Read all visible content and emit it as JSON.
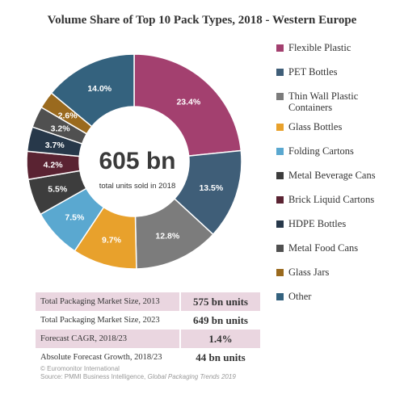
{
  "chart_data": {
    "type": "pie",
    "title": "Volume Share of Top 10 Pack Types, 2018 - Western Europe",
    "categories": [
      "Flexible Plastic",
      "PET Bottles",
      "Thin Wall Plastic Containers",
      "Glass Bottles",
      "Folding Cartons",
      "Metal Beverage Cans",
      "Brick Liquid Cartons",
      "HDPE Bottles",
      "Metal Food Cans",
      "Glass Jars",
      "Other"
    ],
    "values": [
      23.4,
      13.5,
      12.8,
      9.7,
      7.5,
      5.5,
      4.2,
      3.7,
      3.2,
      2.6,
      14.0
    ],
    "value_labels": [
      "23.4%",
      "13.5%",
      "12.8%",
      "9.7%",
      "7.5%",
      "5.5%",
      "4.2%",
      "3.7%",
      "3.2%",
      "2.6%",
      "14.0%"
    ],
    "colors": [
      "#a3406f",
      "#3f5e78",
      "#7c7c7c",
      "#e8a12c",
      "#5aa8d0",
      "#3d3d3d",
      "#5a2332",
      "#27384a",
      "#505050",
      "#9a6a1e",
      "#34627e"
    ],
    "legend_position": "right",
    "hole": true
  },
  "center": {
    "value": "605 bn",
    "sub": "total units sold in 2018"
  },
  "stats": [
    {
      "label": "Total Packaging Market Size, 2013",
      "value": "575 bn units"
    },
    {
      "label": "Total Packaging Market Size, 2023",
      "value": "649 bn units"
    },
    {
      "label": "Forecast CAGR, 2018/23",
      "value": "1.4%"
    },
    {
      "label": "Absolute Forecast Growth, 2018/23",
      "value": "44 bn units"
    }
  ],
  "footer": {
    "copyright": "© Euromonitor International",
    "source_prefix": "Source: PMMI Business Intelligence, ",
    "source_title": "Global Packaging Trends 2019"
  }
}
